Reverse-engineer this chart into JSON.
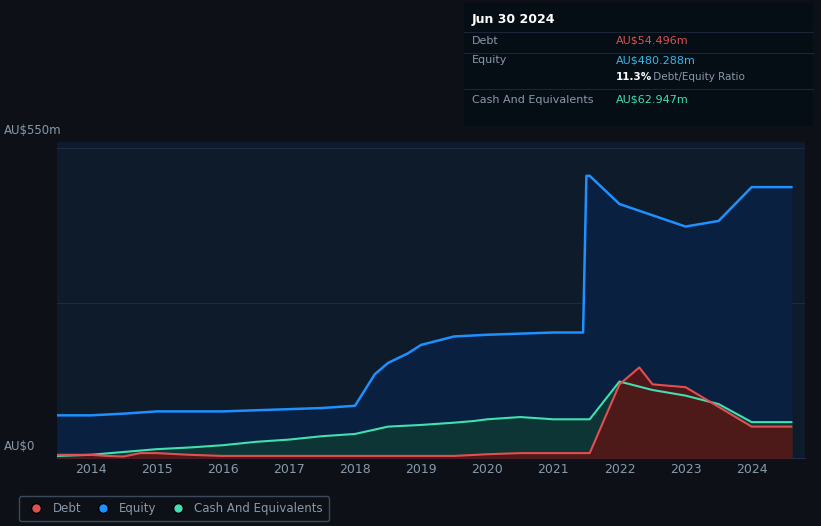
{
  "background_color": "#0d1117",
  "plot_bg_color": "#0d1b2a",
  "title_box": {
    "date": "Jun 30 2024",
    "debt_label": "Debt",
    "debt_value": "AU$54.496m",
    "debt_color": "#e05050",
    "equity_label": "Equity",
    "equity_value": "AU$480.288m",
    "equity_color": "#38b6e8",
    "ratio_bold": "11.3%",
    "ratio_rest": " Debt/Equity Ratio",
    "cash_label": "Cash And Equivalents",
    "cash_value": "AU$62.947m",
    "cash_color": "#40e0b0"
  },
  "x_ticks": [
    2014,
    2015,
    2016,
    2017,
    2018,
    2019,
    2020,
    2021,
    2022,
    2023,
    2024
  ],
  "equity_color": "#1e90ff",
  "equity_fill_color": "#0a2040",
  "debt_color": "#e05050",
  "debt_fill_color": "#5a1515",
  "cash_color": "#40e0b0",
  "cash_fill_color": "#0d3535",
  "equity_data": {
    "x": [
      2013.5,
      2014.0,
      2014.5,
      2015.0,
      2015.5,
      2016.0,
      2016.5,
      2017.0,
      2017.5,
      2018.0,
      2018.3,
      2018.5,
      2018.8,
      2019.0,
      2019.5,
      2020.0,
      2020.5,
      2021.0,
      2021.45,
      2021.5,
      2021.55,
      2022.0,
      2022.5,
      2023.0,
      2023.5,
      2024.0,
      2024.6
    ],
    "y": [
      75,
      75,
      78,
      82,
      82,
      82,
      84,
      86,
      88,
      92,
      148,
      168,
      185,
      200,
      215,
      218,
      220,
      222,
      222,
      500,
      500,
      450,
      430,
      410,
      420,
      480,
      480
    ]
  },
  "debt_data": {
    "x": [
      2013.5,
      2014.0,
      2014.25,
      2014.5,
      2014.75,
      2015.0,
      2015.5,
      2016.0,
      2016.5,
      2017.0,
      2017.5,
      2018.0,
      2018.5,
      2019.0,
      2019.5,
      2020.0,
      2020.5,
      2021.0,
      2021.45,
      2021.5,
      2021.55,
      2022.0,
      2022.3,
      2022.5,
      2023.0,
      2023.5,
      2024.0,
      2024.6
    ],
    "y": [
      5,
      5,
      3,
      2,
      8,
      8,
      5,
      3,
      3,
      3,
      3,
      3,
      3,
      3,
      3,
      6,
      8,
      8,
      8,
      8,
      8,
      130,
      160,
      130,
      125,
      90,
      55,
      55
    ]
  },
  "cash_data": {
    "x": [
      2013.5,
      2014.0,
      2014.5,
      2015.0,
      2015.5,
      2016.0,
      2016.5,
      2017.0,
      2017.5,
      2018.0,
      2018.5,
      2019.0,
      2019.5,
      2019.8,
      2020.0,
      2020.5,
      2021.0,
      2021.45,
      2021.5,
      2021.55,
      2022.0,
      2022.5,
      2023.0,
      2023.5,
      2024.0,
      2024.6
    ],
    "y": [
      3,
      5,
      10,
      15,
      18,
      22,
      28,
      32,
      38,
      42,
      55,
      58,
      62,
      65,
      68,
      72,
      68,
      68,
      68,
      68,
      135,
      120,
      110,
      95,
      63,
      63
    ]
  },
  "legend_items": [
    {
      "label": "Debt",
      "color": "#e05050"
    },
    {
      "label": "Equity",
      "color": "#1e90ff"
    },
    {
      "label": "Cash And Equivalents",
      "color": "#40e0b0"
    }
  ],
  "grid_color": "#1e3050",
  "tick_color": "#8899aa",
  "ylim": [
    0,
    560
  ],
  "xlim": [
    2013.5,
    2024.8
  ],
  "ytick_top": 550,
  "ytick_bottom": 0
}
